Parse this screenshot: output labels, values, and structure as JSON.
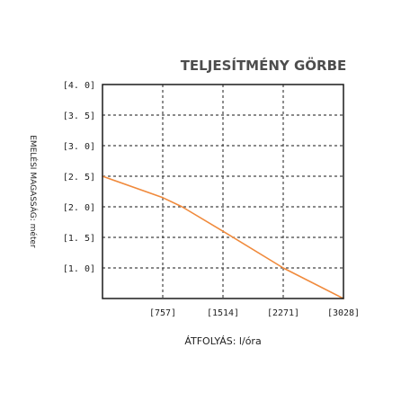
{
  "chart_data": {
    "type": "line",
    "title": "TELJESÍTMÉNY GÖRBE",
    "xlabel": "ÁTFOLYÁS: l/óra",
    "ylabel": "EMELÉSI MAGASSÁG: méter",
    "x_ticks": [
      757,
      1514,
      2271,
      3028
    ],
    "x_tick_labels": [
      "[757]",
      "[1514]",
      "[2271]",
      "[3028]"
    ],
    "y_ticks": [
      1.0,
      1.5,
      2.0,
      2.5,
      3.0,
      3.5,
      4.0
    ],
    "y_tick_labels": [
      "[1. 0]",
      "[1. 5]",
      "[2. 0]",
      "[2. 5]",
      "[3. 0]",
      "[3. 5]",
      "[4. 0]"
    ],
    "xlim": [
      0,
      3028
    ],
    "ylim": [
      0.5,
      4.0
    ],
    "grid": true,
    "series": [
      {
        "x": [
          0,
          757,
          1000,
          1514,
          2271,
          3028
        ],
        "y": [
          2.5,
          2.15,
          2.0,
          1.6,
          1.0,
          0.5
        ],
        "color": "#f08a3c"
      }
    ]
  }
}
